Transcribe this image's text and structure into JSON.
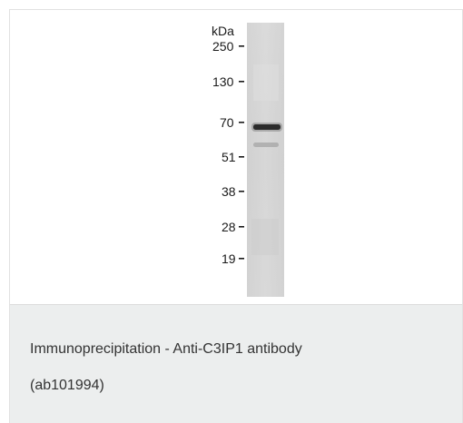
{
  "figure": {
    "unit_label": "kDa",
    "markers": [
      "250",
      "130",
      "70",
      "51",
      "38",
      "28",
      "19"
    ]
  },
  "caption": {
    "line1": "Immunoprecipitation - Anti-C3IP1 antibody",
    "line2": "(ab101994)"
  }
}
